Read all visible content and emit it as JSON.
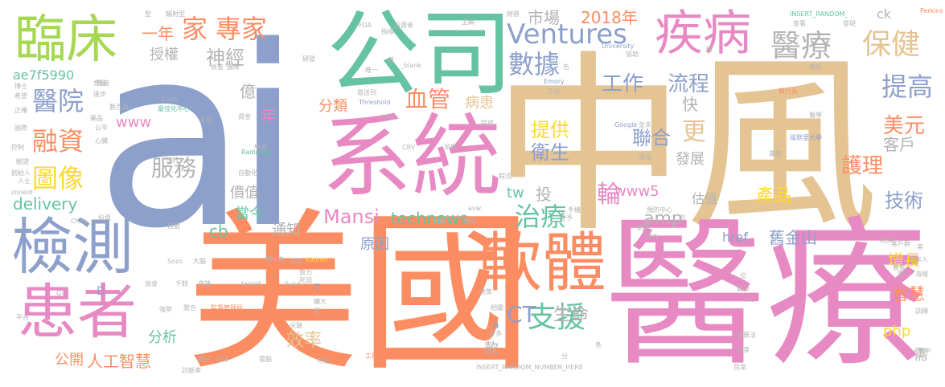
{
  "words": [
    {
      "text": "ai",
      "color": "#8da0cb",
      "weight": 100
    },
    {
      "text": "中風",
      "color": "#e5c494",
      "weight": 95
    },
    {
      "text": "醫療",
      "color": "#e78ac3",
      "weight": 92
    },
    {
      "text": "美國",
      "color": "#fc8d62",
      "weight": 90
    },
    {
      "text": "系統",
      "color": "#e78ac3",
      "weight": 70
    },
    {
      "text": "公司",
      "color": "#66c2a5",
      "weight": 66
    },
    {
      "text": "軟體",
      "color": "#fc8d62",
      "weight": 55
    },
    {
      "text": "檢測",
      "color": "#8da0cb",
      "weight": 52
    },
    {
      "text": "患者",
      "color": "#e78ac3",
      "weight": 50
    },
    {
      "text": "臨床",
      "color": "#a6d854",
      "weight": 45
    },
    {
      "text": "疾病",
      "color": "#e78ac3",
      "weight": 44
    },
    {
      "text": "醫療",
      "color": "#b3b3b3",
      "weight": 36
    },
    {
      "text": "保健",
      "color": "#e5c494",
      "weight": 34
    },
    {
      "text": "家",
      "color": "#fc8d62",
      "weight": 28
    },
    {
      "text": "專家",
      "color": "#fc8d62",
      "weight": 26
    },
    {
      "text": "數據",
      "color": "#8da0cb",
      "weight": 26
    },
    {
      "text": "工作",
      "color": "#8da0cb",
      "weight": 22
    },
    {
      "text": "流程",
      "color": "#8da0cb",
      "weight": 22
    },
    {
      "text": "提高",
      "color": "#8da0cb",
      "weight": 24
    },
    {
      "text": "醫院",
      "color": "#8da0cb",
      "weight": 24
    },
    {
      "text": "融資",
      "color": "#fc8d62",
      "weight": 26
    },
    {
      "text": "圖像",
      "color": "#ffd92f",
      "weight": 26
    },
    {
      "text": "血管",
      "color": "#fc8d62",
      "weight": 24
    },
    {
      "text": "Ventures",
      "color": "#8da0cb",
      "weight": 26
    },
    {
      "text": "服務",
      "color": "#b3b3b3",
      "weight": 22
    },
    {
      "text": "治療",
      "color": "#66c2a5",
      "weight": 26
    },
    {
      "text": "支援",
      "color": "#66c2a5",
      "weight": 28
    },
    {
      "text": "美元",
      "color": "#fc8d62",
      "weight": 22
    },
    {
      "text": "護理",
      "color": "#fc8d62",
      "weight": 22
    },
    {
      "text": "技術",
      "color": "#8da0cb",
      "weight": 20
    },
    {
      "text": "聯合",
      "color": "#8da0cb",
      "weight": 20
    },
    {
      "text": "提供",
      "color": "#ffd92f",
      "weight": 20
    },
    {
      "text": "衛生",
      "color": "#8da0cb",
      "weight": 20
    },
    {
      "text": "更",
      "color": "#e5c494",
      "weight": 22
    },
    {
      "text": "客戶",
      "color": "#b3b3b3",
      "weight": 18
    },
    {
      "text": "產品",
      "color": "#ffd92f",
      "weight": 18
    },
    {
      "text": "輪",
      "color": "#e78ac3",
      "weight": 22
    },
    {
      "text": "amp",
      "color": "#b3b3b3",
      "weight": 18
    },
    {
      "text": "CT",
      "color": "#8da0cb",
      "weight": 22
    },
    {
      "text": "生命",
      "color": "#b3b3b3",
      "weight": 18
    },
    {
      "text": "效率",
      "color": "#e5c494",
      "weight": 18
    },
    {
      "text": "分析",
      "color": "#66c2a5",
      "weight": 15
    },
    {
      "text": "technews",
      "color": "#66c2a5",
      "weight": 17
    },
    {
      "text": "Mansi",
      "color": "#e78ac3",
      "weight": 19
    },
    {
      "text": "delivery",
      "color": "#66c2a5",
      "weight": 17
    },
    {
      "text": "舊金山",
      "color": "#8da0cb",
      "weight": 16
    },
    {
      "text": "增長",
      "color": "#ffd92f",
      "weight": 16
    },
    {
      "text": "智慧",
      "color": "#fc8d62",
      "weight": 16
    },
    {
      "text": "人工智慧",
      "color": "#fc8d62",
      "weight": 16
    },
    {
      "text": "公開",
      "color": "#fc8d62",
      "weight": 14
    },
    {
      "text": "神經",
      "color": "#b3b3b3",
      "weight": 18
    },
    {
      "text": "授權",
      "color": "#b3b3b3",
      "weight": 14
    },
    {
      "text": "一年",
      "color": "#fc8d62",
      "weight": 16
    },
    {
      "text": "市場",
      "color": "#b3b3b3",
      "weight": 16
    },
    {
      "text": "2018年",
      "color": "#fc8d62",
      "weight": 16
    },
    {
      "text": "分類",
      "color": "#fc8d62",
      "weight": 14
    },
    {
      "text": "病患",
      "color": "#e5c494",
      "weight": 14
    },
    {
      "text": "www",
      "color": "#e78ac3",
      "weight": 14
    },
    {
      "text": "www5",
      "color": "#e78ac3",
      "weight": 14
    },
    {
      "text": "php",
      "color": "#ffd92f",
      "weight": 14
    },
    {
      "text": "tw",
      "color": "#66c2a5",
      "weight": 14
    },
    {
      "text": "投",
      "color": "#b3b3b3",
      "weight": 14
    },
    {
      "text": "價值",
      "color": "#b3b3b3",
      "weight": 13
    },
    {
      "text": "當今",
      "color": "#66c2a5",
      "weight": 13
    },
    {
      "text": "通知",
      "color": "#b3b3b3",
      "weight": 13
    },
    {
      "text": "cb",
      "color": "#66c2a5",
      "weight": 14
    },
    {
      "text": "億",
      "color": "#b3b3b3",
      "weight": 14
    },
    {
      "text": "年",
      "color": "#e78ac3",
      "weight": 14
    },
    {
      "text": "快",
      "color": "#b3b3b3",
      "weight": 14
    },
    {
      "text": "發展",
      "color": "#b3b3b3",
      "weight": 13
    },
    {
      "text": "估值",
      "color": "#b3b3b3",
      "weight": 12
    },
    {
      "text": "原因",
      "color": "#8da0cb",
      "weight": 14
    },
    {
      "text": "href",
      "color": "#8da0cb",
      "weight": 12
    },
    {
      "text": "需",
      "color": "#b3b3b3",
      "weight": 12
    },
    {
      "text": "款",
      "color": "#b3b3b3",
      "weight": 12
    },
    {
      "text": "ck",
      "color": "#b3b3b3",
      "weight": 12
    },
    {
      "text": "ae7f5990",
      "color": "#66c2a5",
      "weight": 12
    },
    {
      "text": "n",
      "color": "#8da0cb",
      "weight": 11
    },
    {
      "text": "a",
      "color": "#8da0cb",
      "weight": 11
    },
    {
      "text": "D",
      "color": "#8da0cb",
      "weight": 11
    },
    {
      "text": "Google",
      "color": "#8da0cb",
      "weight": 8
    },
    {
      "text": "Kleiner",
      "color": "#ffd92f",
      "weight": 7
    },
    {
      "text": "Perkins",
      "color": "#fc8d62",
      "weight": 7
    },
    {
      "text": "Radiology",
      "color": "#66c2a5",
      "weight": 7
    },
    {
      "text": "Emory",
      "color": "#8da0cb",
      "weight": 7
    },
    {
      "text": "University",
      "color": "#8da0cb",
      "weight": 7
    },
    {
      "text": "Threshold",
      "color": "#8da0cb",
      "weight": 7
    },
    {
      "text": "INSERT_RANDOM_NUMBER_HERE",
      "color": "#b3b3b3",
      "weight": 7
    },
    {
      "text": "INSERT_RANDOM_",
      "color": "#66c2a5",
      "weight": 7
    },
    {
      "text": "_blank",
      "color": "#b3b3b3",
      "weight": 7
    },
    {
      "text": "FDA",
      "color": "#b3b3b3",
      "weight": 7
    },
    {
      "text": "CRV",
      "color": "#b3b3b3",
      "weight": 7
    },
    {
      "text": "img",
      "color": "#b3b3b3",
      "weight": 7
    },
    {
      "text": "Scale",
      "color": "#b3b3b3",
      "weight": 7
    },
    {
      "text": "zoneid",
      "color": "#b3b3b3",
      "weight": 7
    },
    {
      "text": "Chris",
      "color": "#b3b3b3",
      "weight": 7
    },
    {
      "text": "Sozo",
      "color": "#b3b3b3",
      "weight": 7
    },
    {
      "text": "GV",
      "color": "#b3b3b3",
      "weight": 7
    },
    {
      "text": "Susa",
      "color": "#b3b3b3",
      "weight": 7
    },
    {
      "text": "target",
      "color": "#b3b3b3",
      "weight": 7
    },
    {
      "text": "src",
      "color": "#b3b3b3",
      "weight": 7
    },
    {
      "text": "avw",
      "color": "#b3b3b3",
      "weight": 7
    },
    {
      "text": "輻射型",
      "color": "#b3b3b3",
      "weight": 7
    },
    {
      "text": "投資者",
      "color": "#b3b3b3",
      "weight": 7
    },
    {
      "text": "財務",
      "color": "#b3b3b3",
      "weight": 7
    },
    {
      "text": "主編",
      "color": "#b3b3b3",
      "weight": 7
    },
    {
      "text": "發現",
      "color": "#b3b3b3",
      "weight": 7
    },
    {
      "text": "查看",
      "color": "#b3b3b3",
      "weight": 7
    },
    {
      "text": "埃默里大學",
      "color": "#8da0cb",
      "weight": 7
    },
    {
      "text": "執行長",
      "color": "#fc8d62",
      "weight": 7
    },
    {
      "text": "醫學",
      "color": "#b3b3b3",
      "weight": 7
    },
    {
      "text": "業務",
      "color": "#b3b3b3",
      "weight": 7
    },
    {
      "text": "總部",
      "color": "#b3b3b3",
      "weight": 7
    },
    {
      "text": "最佳化中心",
      "color": "#66c2a5",
      "weight": 7
    },
    {
      "text": "監督管理局",
      "color": "#fc8d62",
      "weight": 7
    },
    {
      "text": "工作站",
      "color": "#fc8d62",
      "weight": 7
    },
    {
      "text": "預防中心",
      "color": "#b3b3b3",
      "weight": 7
    },
    {
      "text": "演算法",
      "color": "#b3b3b3",
      "weight": 7
    },
    {
      "text": "診斷率",
      "color": "#b3b3b3",
      "weight": 7
    },
    {
      "text": "創始人",
      "color": "#b3b3b3",
      "weight": 7
    },
    {
      "text": "成年人",
      "color": "#b3b3b3",
      "weight": 7
    },
    {
      "text": "數百萬",
      "color": "#b3b3b3",
      "weight": 7
    },
    {
      "text": "轉化為",
      "color": "#b3b3b3",
      "weight": 7
    },
    {
      "text": "自動化",
      "color": "#b3b3b3",
      "weight": 7
    },
    {
      "text": "醫師",
      "color": "#b3b3b3",
      "weight": 7
    },
    {
      "text": "前身",
      "color": "#b3b3b3",
      "weight": 7
    },
    {
      "text": "首席",
      "color": "#b3b3b3",
      "weight": 7
    },
    {
      "text": "旗下",
      "color": "#b3b3b3",
      "weight": 7
    },
    {
      "text": "訓練",
      "color": "#b3b3b3",
      "weight": 7
    },
    {
      "text": "海報",
      "color": "#b3b3b3",
      "weight": 7
    },
    {
      "text": "裝置",
      "color": "#b3b3b3",
      "weight": 7
    },
    {
      "text": "第三",
      "color": "#b3b3b3",
      "weight": 7
    },
    {
      "text": "批評",
      "color": "#b3b3b3",
      "weight": 7
    },
    {
      "text": "客戶群",
      "color": "#b3b3b3",
      "weight": 7
    },
    {
      "text": "全球",
      "color": "#b3b3b3",
      "weight": 7
    },
    {
      "text": "可疑",
      "color": "#b3b3b3",
      "weight": 7
    },
    {
      "text": "電腦",
      "color": "#b3b3b3",
      "weight": 7
    },
    {
      "text": "尖端",
      "color": "#b3b3b3",
      "weight": 7
    },
    {
      "text": "強勢",
      "color": "#b3b3b3",
      "weight": 7
    },
    {
      "text": "整合",
      "color": "#b3b3b3",
      "weight": 7
    },
    {
      "text": "大腦",
      "color": "#b3b3b3",
      "weight": 7
    },
    {
      "text": "協會",
      "color": "#b3b3b3",
      "weight": 7
    },
    {
      "text": "千餘",
      "color": "#b3b3b3",
      "weight": 7
    },
    {
      "text": "會議",
      "color": "#b3b3b3",
      "weight": 7
    },
    {
      "text": "深度",
      "color": "#b3b3b3",
      "weight": 7
    },
    {
      "text": "致力",
      "color": "#b3b3b3",
      "weight": 7
    },
    {
      "text": "死因",
      "color": "#b3b3b3",
      "weight": 7
    },
    {
      "text": "擴大",
      "color": "#b3b3b3",
      "weight": 7
    },
    {
      "text": "受",
      "color": "#b3b3b3",
      "weight": 7
    },
    {
      "text": "決策",
      "color": "#b3b3b3",
      "weight": 7
    },
    {
      "text": "相關",
      "color": "#b3b3b3",
      "weight": 7
    },
    {
      "text": "更多",
      "color": "#b3b3b3",
      "weight": 7
    },
    {
      "text": "各",
      "color": "#b3b3b3",
      "weight": 7
    },
    {
      "text": "專業",
      "color": "#b3b3b3",
      "weight": 7
    },
    {
      "text": "挑戰",
      "color": "#b3b3b3",
      "weight": 7
    },
    {
      "text": "網路",
      "color": "#b3b3b3",
      "weight": 7
    },
    {
      "text": "等待",
      "color": "#b3b3b3",
      "weight": 7
    },
    {
      "text": "給予",
      "color": "#b3b3b3",
      "weight": 7
    },
    {
      "text": "手機",
      "color": "#b3b3b3",
      "weight": 7
    },
    {
      "text": "程式",
      "color": "#b3b3b3",
      "weight": 7
    },
    {
      "text": "早期",
      "color": "#b3b3b3",
      "weight": 7
    },
    {
      "text": "院成",
      "color": "#b3b3b3",
      "weight": 7
    },
    {
      "text": "並未",
      "color": "#b3b3b3",
      "weight": 7
    },
    {
      "text": "達成",
      "color": "#b3b3b3",
      "weight": 7
    },
    {
      "text": "學習",
      "color": "#b3b3b3",
      "weight": 7
    },
    {
      "text": "資金",
      "color": "#b3b3b3",
      "weight": 7
    },
    {
      "text": "平板",
      "color": "#b3b3b3",
      "weight": 7
    },
    {
      "text": "心臟",
      "color": "#b3b3b3",
      "weight": 7
    },
    {
      "text": "藥品",
      "color": "#b3b3b3",
      "weight": 7
    },
    {
      "text": "控制",
      "color": "#b3b3b3",
      "weight": 7
    },
    {
      "text": "驗證",
      "color": "#b3b3b3",
      "weight": 7
    },
    {
      "text": "國際",
      "color": "#b3b3b3",
      "weight": 7
    },
    {
      "text": "正確",
      "color": "#b3b3b3",
      "weight": 7
    },
    {
      "text": "博士",
      "color": "#b3b3b3",
      "weight": 7
    },
    {
      "text": "希望",
      "color": "#b3b3b3",
      "weight": 7
    },
    {
      "text": "食品",
      "color": "#b3b3b3",
      "weight": 7
    },
    {
      "text": "進步",
      "color": "#b3b3b3",
      "weight": 7
    },
    {
      "text": "公平",
      "color": "#b3b3b3",
      "weight": 7
    },
    {
      "text": "人士",
      "color": "#b3b3b3",
      "weight": 7
    },
    {
      "text": "平台",
      "color": "#b3b3b3",
      "weight": 7
    },
    {
      "text": "位於",
      "color": "#b3b3b3",
      "weight": 7
    },
    {
      "text": "投資",
      "color": "#b3b3b3",
      "weight": 7
    },
    {
      "text": "醫生",
      "color": "#b3b3b3",
      "weight": 7
    },
    {
      "text": "自動",
      "color": "#b3b3b3",
      "weight": 7
    },
    {
      "text": "檢查",
      "color": "#b3b3b3",
      "weight": 7
    },
    {
      "text": "團隊",
      "color": "#b3b3b3",
      "weight": 7
    },
    {
      "text": "研發",
      "color": "#b3b3b3",
      "weight": 7
    },
    {
      "text": "指標",
      "color": "#b3b3b3",
      "weight": 7
    },
    {
      "text": "唯一",
      "color": "#b3b3b3",
      "weight": 7
    },
    {
      "text": "發送到",
      "color": "#b3b3b3",
      "weight": 7
    },
    {
      "text": "協助",
      "color": "#b3b3b3",
      "weight": 7
    },
    {
      "text": "之初",
      "color": "#b3b3b3",
      "weight": 7
    },
    {
      "text": "約",
      "color": "#b3b3b3",
      "weight": 7
    },
    {
      "text": "普遍",
      "color": "#b3b3b3",
      "weight": 7
    },
    {
      "text": "獲",
      "color": "#b3b3b3",
      "weight": 7
    },
    {
      "text": "告",
      "color": "#b3b3b3",
      "weight": 7
    },
    {
      "text": "時",
      "color": "#b3b3b3",
      "weight": 7
    },
    {
      "text": "分",
      "color": "#b3b3b3",
      "weight": 7
    },
    {
      "text": "美",
      "color": "#b3b3b3",
      "weight": 7
    },
    {
      "text": "位",
      "color": "#b3b3b3",
      "weight": 7
    },
    {
      "text": "型",
      "color": "#b3b3b3",
      "weight": 7
    }
  ]
}
